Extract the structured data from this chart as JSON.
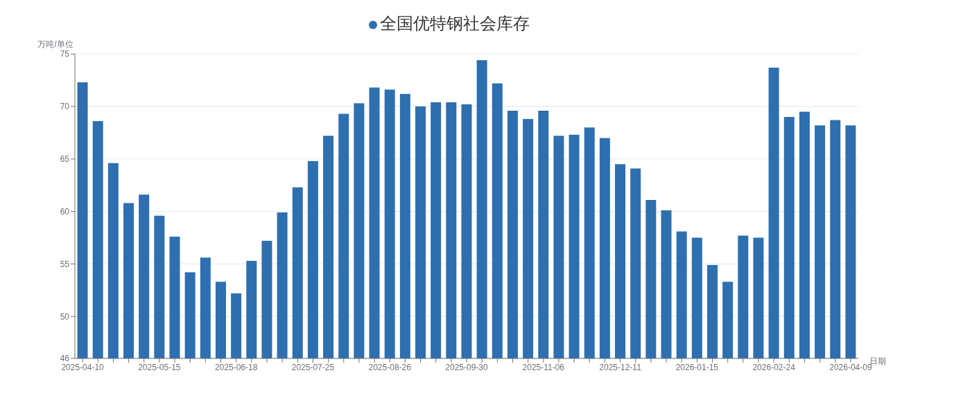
{
  "chart_data": {
    "type": "bar",
    "xlabel": "日期",
    "ylabel": "万吨/单位",
    "categories": [
      "2025-04-10",
      null,
      null,
      null,
      null,
      "2025-05-15",
      null,
      null,
      null,
      null,
      "2025-06-18",
      null,
      null,
      null,
      null,
      "2025-07-25",
      null,
      null,
      null,
      null,
      "2025-08-26",
      null,
      null,
      null,
      null,
      "2025-09-30",
      null,
      null,
      null,
      null,
      "2025-11-06",
      null,
      null,
      null,
      null,
      "2025-12-11",
      null,
      null,
      null,
      null,
      "2026-01-15",
      null,
      null,
      null,
      null,
      "2026-02-24",
      null,
      null,
      null,
      null,
      "2026-04-09"
    ],
    "series": [
      {
        "name": "全国优特钢社会库存",
        "color": "#2e6fb0",
        "values": [
          72.3,
          68.6,
          64.6,
          60.8,
          61.6,
          59.6,
          57.6,
          54.2,
          55.6,
          53.3,
          52.2,
          55.3,
          57.2,
          59.9,
          62.3,
          64.8,
          67.2,
          69.3,
          70.3,
          71.8,
          71.6,
          71.2,
          70.0,
          70.4,
          70.4,
          70.2,
          74.4,
          72.2,
          69.6,
          68.8,
          69.6,
          67.2,
          67.3,
          68.0,
          67.0,
          64.5,
          64.1,
          61.1,
          60.1,
          58.1,
          57.5,
          54.9,
          53.3,
          57.7,
          57.5,
          73.7,
          69.0,
          69.5,
          68.2,
          68.7,
          68.2
        ]
      }
    ],
    "ylim": [
      46,
      75
    ],
    "yticks": [
      46,
      50,
      55,
      60,
      65,
      70,
      75
    ],
    "grid": "y",
    "legend": "top"
  }
}
